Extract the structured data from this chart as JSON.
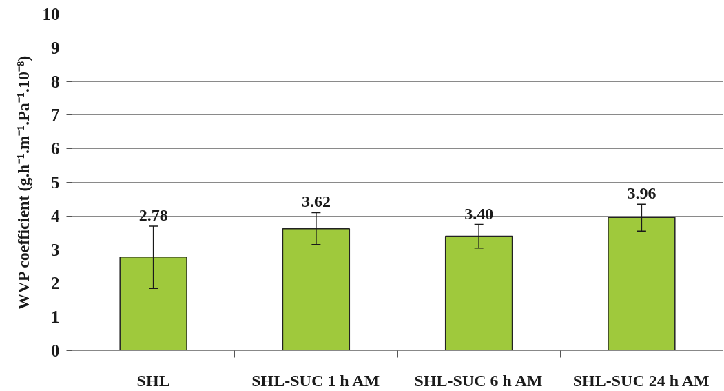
{
  "chart_data": {
    "type": "bar",
    "ylabel": "WVP coefficient (g.h⁻¹.m⁻¹.Pa⁻¹.10⁻⁸)",
    "categories": [
      "SHL",
      "SHL-SUC 1 h AM",
      "SHL-SUC 6 h AM",
      "SHL-SUC 24 h AM"
    ],
    "values": [
      2.78,
      3.62,
      3.4,
      3.96
    ],
    "value_labels": [
      "2.78",
      "3.62",
      "3.40",
      "3.96"
    ],
    "errors": [
      [
        1.85,
        3.7
      ],
      [
        3.15,
        4.1
      ],
      [
        3.05,
        3.75
      ],
      [
        3.55,
        4.35
      ]
    ],
    "color": "#9fc93c",
    "ylim": [
      0,
      10
    ],
    "yticks": [
      0,
      1,
      2,
      3,
      4,
      5,
      6,
      7,
      8,
      9,
      10
    ],
    "grid": "y"
  }
}
